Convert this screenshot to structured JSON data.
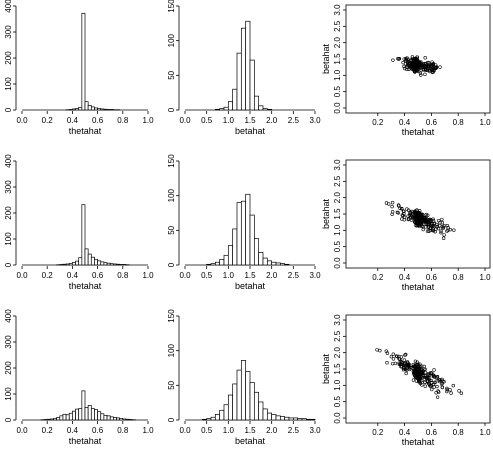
{
  "chart_data": [
    {
      "type": "bar",
      "xlabel": "thetahat",
      "ylabel": "",
      "xlim": [
        0,
        1
      ],
      "ylim": [
        0,
        400
      ],
      "xticks": [
        "0.0",
        "0.2",
        "0.4",
        "0.6",
        "0.8",
        "1.0"
      ],
      "yticks": [
        "0",
        "100",
        "200",
        "300",
        "400"
      ],
      "bin_width": 0.025,
      "bins": [
        {
          "x": 0.35,
          "y": 1
        },
        {
          "x": 0.375,
          "y": 2
        },
        {
          "x": 0.4,
          "y": 4
        },
        {
          "x": 0.425,
          "y": 6
        },
        {
          "x": 0.45,
          "y": 10
        },
        {
          "x": 0.475,
          "y": 372
        },
        {
          "x": 0.5,
          "y": 32
        },
        {
          "x": 0.525,
          "y": 18
        },
        {
          "x": 0.55,
          "y": 12
        },
        {
          "x": 0.575,
          "y": 8
        },
        {
          "x": 0.6,
          "y": 6
        },
        {
          "x": 0.625,
          "y": 4
        },
        {
          "x": 0.65,
          "y": 3
        },
        {
          "x": 0.675,
          "y": 2
        },
        {
          "x": 0.7,
          "y": 2
        },
        {
          "x": 0.725,
          "y": 1
        },
        {
          "x": 0.75,
          "y": 1
        }
      ]
    },
    {
      "type": "bar",
      "xlabel": "betahat",
      "ylabel": "",
      "xlim": [
        0,
        3
      ],
      "ylim": [
        0,
        150
      ],
      "xticks": [
        "0.0",
        "0.5",
        "1.0",
        "1.5",
        "2.0",
        "2.5",
        "3.0"
      ],
      "yticks": [
        "0",
        "50",
        "100",
        "150"
      ],
      "bin_width": 0.1,
      "bins": [
        {
          "x": 0.7,
          "y": 1
        },
        {
          "x": 0.8,
          "y": 2
        },
        {
          "x": 0.9,
          "y": 4
        },
        {
          "x": 1.0,
          "y": 12
        },
        {
          "x": 1.1,
          "y": 30
        },
        {
          "x": 1.2,
          "y": 82
        },
        {
          "x": 1.3,
          "y": 118
        },
        {
          "x": 1.4,
          "y": 128
        },
        {
          "x": 1.5,
          "y": 72
        },
        {
          "x": 1.6,
          "y": 20
        },
        {
          "x": 1.7,
          "y": 6
        },
        {
          "x": 1.8,
          "y": 2
        },
        {
          "x": 1.9,
          "y": 1
        }
      ]
    },
    {
      "type": "scatter",
      "xlabel": "thetahat",
      "ylabel": "betahat",
      "xlim": [
        0,
        1
      ],
      "ylim": [
        0,
        3
      ],
      "xticks": [
        "0.2",
        "0.4",
        "0.6",
        "0.8",
        "1.0"
      ],
      "yticks": [
        "0.0",
        "0.5",
        "1.0",
        "1.5",
        "2.0",
        "2.5",
        "3.0"
      ],
      "spread": {
        "theta_center": 0.5,
        "beta_center": 1.32,
        "slope": -0.8
      }
    },
    {
      "type": "bar",
      "xlabel": "thetahat",
      "ylabel": "",
      "xlim": [
        0,
        1
      ],
      "ylim": [
        0,
        400
      ],
      "xticks": [
        "0.0",
        "0.2",
        "0.4",
        "0.6",
        "0.8",
        "1.0"
      ],
      "yticks": [
        "0",
        "100",
        "200",
        "300",
        "400"
      ],
      "bin_width": 0.025,
      "bins": [
        {
          "x": 0.275,
          "y": 1
        },
        {
          "x": 0.3,
          "y": 2
        },
        {
          "x": 0.325,
          "y": 3
        },
        {
          "x": 0.35,
          "y": 4
        },
        {
          "x": 0.375,
          "y": 6
        },
        {
          "x": 0.4,
          "y": 10
        },
        {
          "x": 0.425,
          "y": 15
        },
        {
          "x": 0.45,
          "y": 28
        },
        {
          "x": 0.475,
          "y": 232
        },
        {
          "x": 0.5,
          "y": 62
        },
        {
          "x": 0.525,
          "y": 42
        },
        {
          "x": 0.55,
          "y": 30
        },
        {
          "x": 0.575,
          "y": 22
        },
        {
          "x": 0.6,
          "y": 16
        },
        {
          "x": 0.625,
          "y": 12
        },
        {
          "x": 0.65,
          "y": 9
        },
        {
          "x": 0.675,
          "y": 7
        },
        {
          "x": 0.7,
          "y": 5
        },
        {
          "x": 0.725,
          "y": 4
        },
        {
          "x": 0.75,
          "y": 3
        },
        {
          "x": 0.775,
          "y": 2
        },
        {
          "x": 0.8,
          "y": 2
        },
        {
          "x": 0.825,
          "y": 1
        }
      ]
    },
    {
      "type": "bar",
      "xlabel": "betahat",
      "ylabel": "",
      "xlim": [
        0,
        3
      ],
      "ylim": [
        0,
        150
      ],
      "xticks": [
        "0.0",
        "0.5",
        "1.0",
        "1.5",
        "2.0",
        "2.5",
        "3.0"
      ],
      "yticks": [
        "0",
        "50",
        "100",
        "150"
      ],
      "bin_width": 0.1,
      "bins": [
        {
          "x": 0.5,
          "y": 1
        },
        {
          "x": 0.6,
          "y": 2
        },
        {
          "x": 0.7,
          "y": 4
        },
        {
          "x": 0.8,
          "y": 8
        },
        {
          "x": 0.9,
          "y": 14
        },
        {
          "x": 1.0,
          "y": 28
        },
        {
          "x": 1.1,
          "y": 52
        },
        {
          "x": 1.2,
          "y": 90
        },
        {
          "x": 1.3,
          "y": 92
        },
        {
          "x": 1.4,
          "y": 102
        },
        {
          "x": 1.5,
          "y": 72
        },
        {
          "x": 1.6,
          "y": 38
        },
        {
          "x": 1.7,
          "y": 18
        },
        {
          "x": 1.8,
          "y": 10
        },
        {
          "x": 1.9,
          "y": 6
        },
        {
          "x": 2.0,
          "y": 4
        },
        {
          "x": 2.1,
          "y": 3
        },
        {
          "x": 2.2,
          "y": 2
        },
        {
          "x": 2.3,
          "y": 1
        }
      ]
    },
    {
      "type": "scatter",
      "xlabel": "thetahat",
      "ylabel": "betahat",
      "xlim": [
        0,
        1
      ],
      "ylim": [
        0,
        3
      ],
      "xticks": [
        "0.2",
        "0.4",
        "0.6",
        "0.8",
        "1.0"
      ],
      "yticks": [
        "0.0",
        "0.5",
        "1.0",
        "1.5",
        "2.0",
        "2.5",
        "3.0"
      ],
      "spread": {
        "theta_center": 0.52,
        "beta_center": 1.32,
        "slope": -1.7
      }
    },
    {
      "type": "bar",
      "xlabel": "thetahat",
      "ylabel": "",
      "xlim": [
        0,
        1
      ],
      "ylim": [
        0,
        400
      ],
      "xticks": [
        "0.0",
        "0.2",
        "0.4",
        "0.6",
        "0.8",
        "1.0"
      ],
      "yticks": [
        "0",
        "100",
        "200",
        "300",
        "400"
      ],
      "bin_width": 0.025,
      "bins": [
        {
          "x": 0.15,
          "y": 1
        },
        {
          "x": 0.175,
          "y": 2
        },
        {
          "x": 0.2,
          "y": 3
        },
        {
          "x": 0.225,
          "y": 4
        },
        {
          "x": 0.25,
          "y": 6
        },
        {
          "x": 0.275,
          "y": 10
        },
        {
          "x": 0.3,
          "y": 16
        },
        {
          "x": 0.325,
          "y": 22
        },
        {
          "x": 0.35,
          "y": 20
        },
        {
          "x": 0.375,
          "y": 26
        },
        {
          "x": 0.4,
          "y": 34
        },
        {
          "x": 0.425,
          "y": 42
        },
        {
          "x": 0.45,
          "y": 44
        },
        {
          "x": 0.475,
          "y": 112
        },
        {
          "x": 0.5,
          "y": 48
        },
        {
          "x": 0.525,
          "y": 56
        },
        {
          "x": 0.55,
          "y": 44
        },
        {
          "x": 0.575,
          "y": 40
        },
        {
          "x": 0.6,
          "y": 32
        },
        {
          "x": 0.625,
          "y": 24
        },
        {
          "x": 0.65,
          "y": 18
        },
        {
          "x": 0.675,
          "y": 16
        },
        {
          "x": 0.7,
          "y": 12
        },
        {
          "x": 0.725,
          "y": 10
        },
        {
          "x": 0.75,
          "y": 8
        },
        {
          "x": 0.775,
          "y": 6
        },
        {
          "x": 0.8,
          "y": 4
        },
        {
          "x": 0.825,
          "y": 3
        },
        {
          "x": 0.85,
          "y": 2
        },
        {
          "x": 0.875,
          "y": 1
        }
      ]
    },
    {
      "type": "bar",
      "xlabel": "betahat",
      "ylabel": "",
      "xlim": [
        0,
        3
      ],
      "ylim": [
        0,
        150
      ],
      "xticks": [
        "0.0",
        "0.5",
        "1.0",
        "1.5",
        "2.0",
        "2.5",
        "3.0"
      ],
      "yticks": [
        "0",
        "50",
        "100",
        "150"
      ],
      "bin_width": 0.1,
      "bins": [
        {
          "x": 0.4,
          "y": 1
        },
        {
          "x": 0.5,
          "y": 2
        },
        {
          "x": 0.6,
          "y": 4
        },
        {
          "x": 0.7,
          "y": 8
        },
        {
          "x": 0.8,
          "y": 14
        },
        {
          "x": 0.9,
          "y": 22
        },
        {
          "x": 1.0,
          "y": 36
        },
        {
          "x": 1.1,
          "y": 52
        },
        {
          "x": 1.2,
          "y": 72
        },
        {
          "x": 1.3,
          "y": 86
        },
        {
          "x": 1.4,
          "y": 70
        },
        {
          "x": 1.5,
          "y": 54
        },
        {
          "x": 1.6,
          "y": 40
        },
        {
          "x": 1.7,
          "y": 26
        },
        {
          "x": 1.8,
          "y": 16
        },
        {
          "x": 1.9,
          "y": 10
        },
        {
          "x": 2.0,
          "y": 8
        },
        {
          "x": 2.1,
          "y": 6
        },
        {
          "x": 2.2,
          "y": 5
        },
        {
          "x": 2.3,
          "y": 4
        },
        {
          "x": 2.4,
          "y": 3
        },
        {
          "x": 2.5,
          "y": 3
        },
        {
          "x": 2.6,
          "y": 2
        },
        {
          "x": 2.7,
          "y": 2
        },
        {
          "x": 2.8,
          "y": 1
        },
        {
          "x": 2.9,
          "y": 1
        }
      ]
    },
    {
      "type": "scatter",
      "xlabel": "thetahat",
      "ylabel": "betahat",
      "xlim": [
        0,
        1
      ],
      "ylim": [
        0,
        3
      ],
      "xticks": [
        "0.2",
        "0.4",
        "0.6",
        "0.8",
        "1.0"
      ],
      "yticks": [
        "0.0",
        "0.5",
        "1.0",
        "1.5",
        "2.0",
        "2.5",
        "3.0"
      ],
      "spread": {
        "theta_center": 0.52,
        "beta_center": 1.35,
        "slope": -2.4
      }
    }
  ]
}
